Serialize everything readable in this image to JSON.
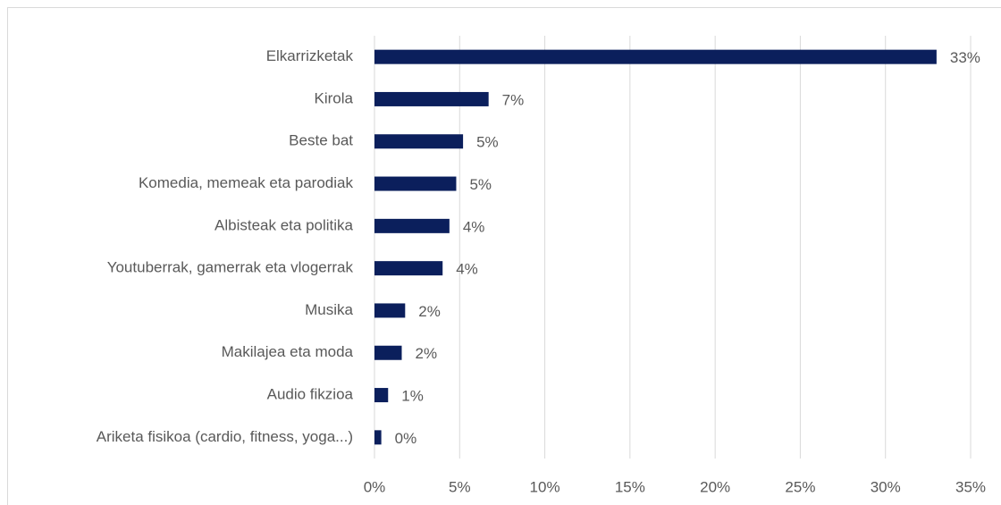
{
  "chart_data": {
    "type": "barh",
    "categories": [
      "Elkarrizketak",
      "Kirola",
      "Beste bat",
      "Komedia, memeak eta parodiak",
      "Albisteak eta politika",
      "Youtuberrak, gamerrak eta vlogerrak",
      "Musika",
      "Makilajea eta moda",
      "Audio fikzioa",
      "Ariketa fisikoa (cardio, fitness, yoga...)"
    ],
    "values": [
      33,
      6.7,
      5.2,
      4.8,
      4.4,
      4.0,
      1.8,
      1.6,
      0.8,
      0.4
    ],
    "value_labels": [
      "33%",
      "7%",
      "5%",
      "5%",
      "4%",
      "4%",
      "2%",
      "2%",
      "1%",
      "0%"
    ],
    "color": "#0b1f5c",
    "xlim": [
      0,
      35
    ],
    "xticks": [
      {
        "value": 0,
        "label": "0%"
      },
      {
        "value": 5,
        "label": "5%"
      },
      {
        "value": 10,
        "label": "10%"
      },
      {
        "value": 15,
        "label": "15%"
      },
      {
        "value": 20,
        "label": "20%"
      },
      {
        "value": 25,
        "label": "25%"
      },
      {
        "value": 30,
        "label": "30%"
      },
      {
        "value": 35,
        "label": "35%"
      }
    ],
    "grid": true
  }
}
